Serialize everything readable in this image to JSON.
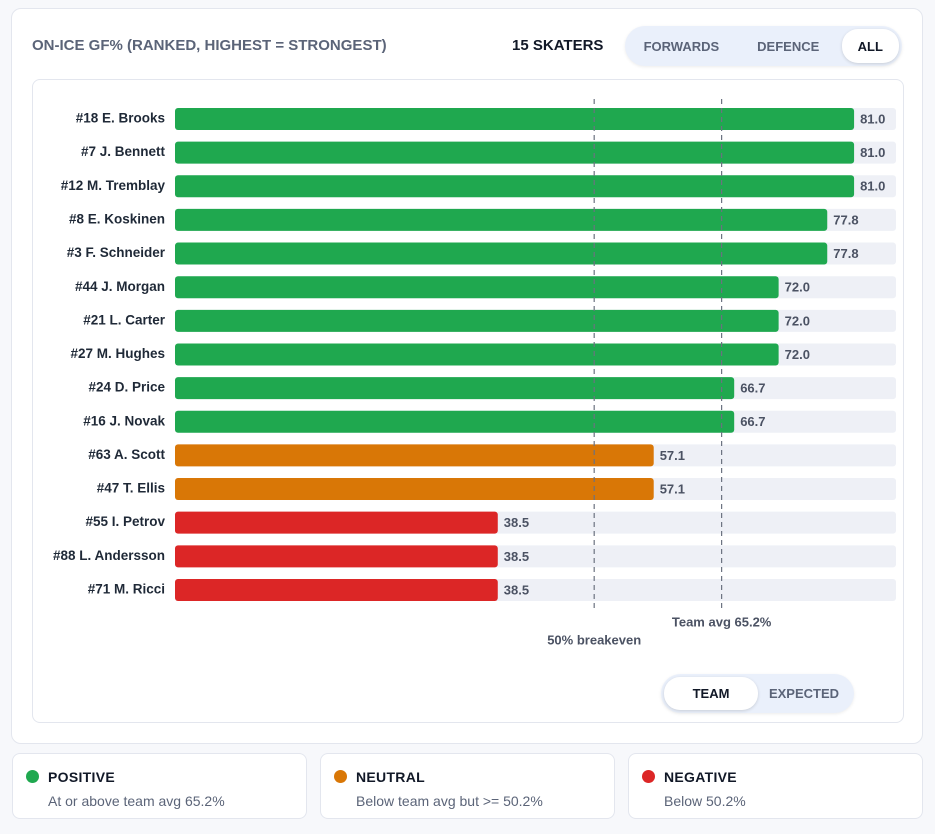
{
  "header": {
    "title": "ON-ICE GF% (RANKED, HIGHEST = STRONGEST)",
    "count": "15 SKATERS",
    "filters": [
      "FORWARDS",
      "DEFENCE",
      "ALL"
    ],
    "active_filter": 2
  },
  "chart_data": {
    "type": "bar",
    "orientation": "horizontal",
    "categories": [
      "#18 E. Brooks",
      "#7 J. Bennett",
      "#12 M. Tremblay",
      "#8 E. Koskinen",
      "#3 F. Schneider",
      "#44 J. Morgan",
      "#21 L. Carter",
      "#27 M. Hughes",
      "#24 D. Price",
      "#16 J. Novak",
      "#63 A. Scott",
      "#47 T. Ellis",
      "#55 I. Petrov",
      "#88 L. Andersson",
      "#71 M. Ricci"
    ],
    "values": [
      81.0,
      81.0,
      81.0,
      77.8,
      77.8,
      72.0,
      72.0,
      72.0,
      66.7,
      66.7,
      57.1,
      57.1,
      38.5,
      38.5,
      38.5
    ],
    "value_labels": [
      "81.0",
      "81.0",
      "81.0",
      "77.8",
      "77.8",
      "72.0",
      "72.0",
      "72.0",
      "66.7",
      "66.7",
      "57.1",
      "57.1",
      "38.5",
      "38.5",
      "38.5"
    ],
    "colors": [
      "#1fa84f",
      "#1fa84f",
      "#1fa84f",
      "#1fa84f",
      "#1fa84f",
      "#1fa84f",
      "#1fa84f",
      "#1fa84f",
      "#1fa84f",
      "#1fa84f",
      "#d97706",
      "#d97706",
      "#dc2626",
      "#dc2626",
      "#dc2626"
    ],
    "xlim": [
      0,
      86
    ],
    "reference_lines": [
      {
        "value": 50,
        "label": "50% breakeven"
      },
      {
        "value": 65.2,
        "label": "Team avg 65.2%"
      }
    ]
  },
  "mode_toggle": {
    "options": [
      "TEAM",
      "EXPECTED"
    ],
    "active": 0
  },
  "legend": [
    {
      "name": "POSITIVE",
      "color": "#1fa84f",
      "description": "At or above team avg 65.2%"
    },
    {
      "name": "NEUTRAL",
      "color": "#d97706",
      "description": "Below team avg but >= 50.2%"
    },
    {
      "name": "NEGATIVE",
      "color": "#dc2626",
      "description": "Below 50.2%"
    }
  ]
}
